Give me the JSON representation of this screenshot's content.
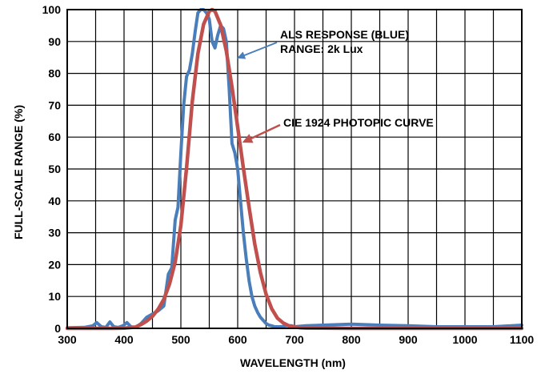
{
  "chart_data": {
    "type": "line",
    "title": "",
    "xlabel": "WAVELENGTH (nm)",
    "ylabel": "FULL-SCALE RANGE (%)",
    "xlim": [
      300,
      1100
    ],
    "ylim": [
      0,
      100
    ],
    "x_ticks": [
      300,
      400,
      500,
      600,
      700,
      800,
      900,
      1000,
      1100
    ],
    "y_ticks": [
      0,
      10,
      20,
      30,
      40,
      50,
      60,
      70,
      80,
      90,
      100
    ],
    "x_tick_labels": [
      "300",
      "400",
      "500",
      "600",
      "700",
      "800",
      "900",
      "1000",
      "1100"
    ],
    "y_tick_labels": [
      "0",
      "10",
      "20",
      "30",
      "40",
      "50",
      "60",
      "70",
      "80",
      "90",
      "100"
    ],
    "grid": true,
    "series": [
      {
        "name": "ALS RESPONSE (BLUE) RANGE: 2k Lux",
        "color": "#4a7ebb",
        "x": [
          300,
          330,
          345,
          352,
          360,
          368,
          375,
          382,
          390,
          398,
          405,
          412,
          420,
          430,
          440,
          450,
          460,
          470,
          478,
          484,
          490,
          495,
          500,
          505,
          510,
          515,
          520,
          525,
          530,
          535,
          540,
          545,
          550,
          555,
          560,
          565,
          570,
          575,
          580,
          585,
          590,
          595,
          600,
          605,
          610,
          615,
          620,
          625,
          630,
          635,
          640,
          645,
          650,
          655,
          660,
          665,
          670,
          675,
          680,
          685,
          690,
          695,
          700,
          720,
          750,
          800,
          850,
          900,
          950,
          1000,
          1050,
          1100
        ],
        "y": [
          0.2,
          0.3,
          0.8,
          1.8,
          0.5,
          0.3,
          2.0,
          0.5,
          0.3,
          0.8,
          1.8,
          0.5,
          0.3,
          1.5,
          3.5,
          4.5,
          5.5,
          7.0,
          17.0,
          19.0,
          34.0,
          38.0,
          55.0,
          70.0,
          79.0,
          81.0,
          86.0,
          93.0,
          99.0,
          100.0,
          100.0,
          99.0,
          97.0,
          90.0,
          88.0,
          92.0,
          95.0,
          94.0,
          90.0,
          75.0,
          58.0,
          55.0,
          50.0,
          40.0,
          30.0,
          22.0,
          15.0,
          10.0,
          7.0,
          5.0,
          3.5,
          2.5,
          1.5,
          1.0,
          0.8,
          0.5,
          0.5,
          0.5,
          0.6,
          0.8,
          0.8,
          0.8,
          0.5,
          0.8,
          1.0,
          1.3,
          1.0,
          0.8,
          0.5,
          0.5,
          0.5,
          1.0
        ]
      },
      {
        "name": "CIE 1924 PHOTOPIC CURVE",
        "color": "#c0504d",
        "x": [
          300,
          380,
          400,
          420,
          430,
          440,
          450,
          460,
          470,
          480,
          490,
          500,
          510,
          520,
          530,
          540,
          550,
          555,
          560,
          570,
          580,
          590,
          600,
          610,
          620,
          630,
          640,
          650,
          660,
          670,
          680,
          690,
          700,
          710,
          720,
          800,
          900,
          1000,
          1100
        ],
        "y": [
          0,
          0,
          0.05,
          0.4,
          1.2,
          2.3,
          3.8,
          6.0,
          9.1,
          13.9,
          20.8,
          32.3,
          50.3,
          71.0,
          86.2,
          95.4,
          99.5,
          100.0,
          99.5,
          95.2,
          87.0,
          75.7,
          63.1,
          50.3,
          38.1,
          26.5,
          17.5,
          10.7,
          6.1,
          3.2,
          1.7,
          0.8,
          0.4,
          0.2,
          0.1,
          0,
          0,
          0,
          0
        ]
      }
    ],
    "annotations": [
      {
        "lines": [
          "ALS RESPONSE (BLUE)",
          "RANGE: 2k Lux"
        ],
        "points_to": "ALS RESPONSE (BLUE) RANGE: 2k Lux"
      },
      {
        "lines": [
          "CIE 1924 PHOTOPIC CURVE"
        ],
        "points_to": "CIE 1924 PHOTOPIC CURVE"
      }
    ]
  }
}
